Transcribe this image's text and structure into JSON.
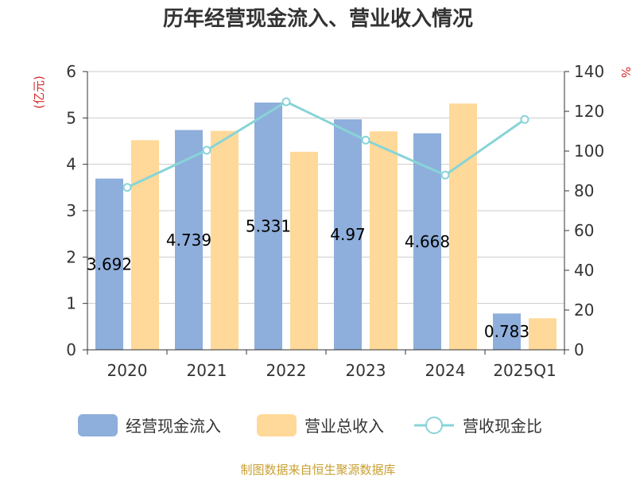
{
  "chart_data": {
    "type": "bar",
    "title": "历年经营现金流入、营业收入情况",
    "left_axis_unit": "(亿元)",
    "right_axis_unit": "%",
    "categories": [
      "2020",
      "2021",
      "2022",
      "2023",
      "2024",
      "2025Q1"
    ],
    "left_ylim": [
      0,
      6
    ],
    "left_ticks": [
      "0",
      "1",
      "2",
      "3",
      "4",
      "5",
      "6"
    ],
    "right_ylim": [
      0,
      140
    ],
    "right_ticks": [
      "0",
      "20",
      "40",
      "60",
      "80",
      "100",
      "120",
      "140"
    ],
    "grid": true,
    "legend_position": "bottom",
    "series": [
      {
        "name": "经营现金流入",
        "type": "bar",
        "axis": "left",
        "values": [
          3.692,
          4.739,
          5.331,
          4.97,
          4.668,
          0.783
        ],
        "labels": [
          "3.692",
          "4.739",
          "5.331",
          "4.97",
          "4.668",
          "0.783"
        ],
        "color": "#8EAEDB"
      },
      {
        "name": "营业总收入",
        "type": "bar",
        "axis": "left",
        "values": [
          4.52,
          4.72,
          4.27,
          4.71,
          5.31,
          0.68
        ],
        "color": "#FFD999"
      },
      {
        "name": "营收现金比",
        "type": "line",
        "axis": "right",
        "values": [
          81.7,
          100.4,
          124.8,
          105.5,
          87.9,
          115.9
        ],
        "color": "#88D4D8"
      }
    ]
  },
  "source": "制图数据来自恒生聚源数据库",
  "colors": {
    "unit": "#D42A2A",
    "source": "#C8A032",
    "grid": "#CCCCCC",
    "axis": "#333333"
  }
}
